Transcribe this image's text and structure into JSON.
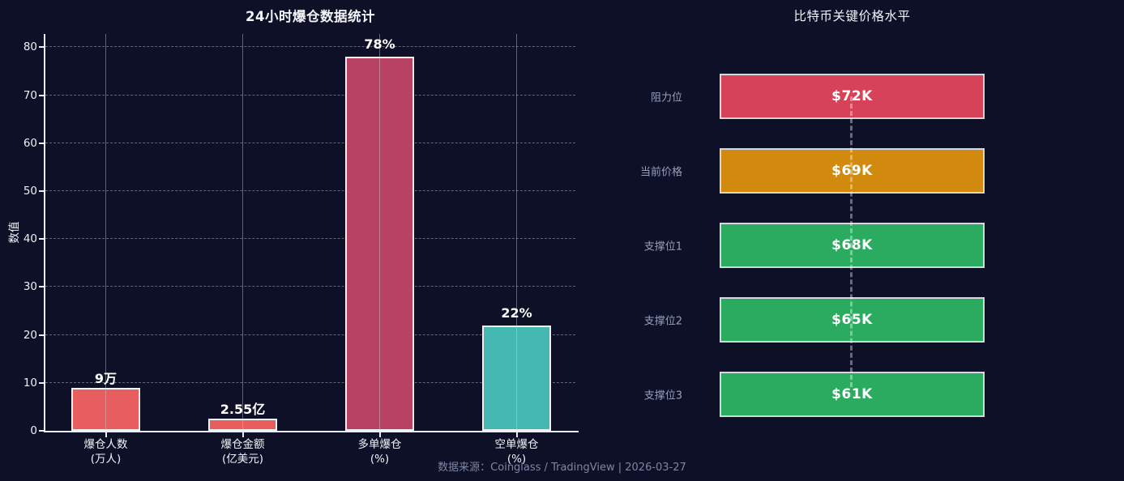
{
  "caption": "数据来源：Coinglass / TradingView | 2026-03-27",
  "colors": {
    "background": "#0d1026",
    "axis": "#e9edf4",
    "salmon": "#e85d5d",
    "crimson": "#b84263",
    "teal": "#45b8b1",
    "resistance_red": "#d64258",
    "current_orange": "#d18a0d",
    "support_green": "#2bab60"
  },
  "chart_data": [
    {
      "type": "bar",
      "title": "24小时爆仓数据统计",
      "xlabel": "",
      "ylabel": "数值",
      "ylim": [
        0,
        80
      ],
      "yticks": [
        0,
        10,
        20,
        30,
        40,
        50,
        60,
        70,
        80
      ],
      "grid": true,
      "categories": [
        "爆仓人数\n(万人)",
        "爆仓金额\n(亿美元)",
        "多单爆仓\n(%)",
        "空单爆仓\n(%)"
      ],
      "values": [
        9,
        2.55,
        78,
        22
      ],
      "bar_labels": [
        "9万",
        "2.55亿",
        "78%",
        "22%"
      ],
      "bar_colors": [
        "#e85d5d",
        "#e85d5d",
        "#b84263",
        "#45b8b1"
      ]
    },
    {
      "type": "bar",
      "subtype": "horizontal-price-levels",
      "title": "比特币关键价格水平",
      "categories": [
        "阻力位",
        "当前价格",
        "支撑位1",
        "支撑位2",
        "支撑位3"
      ],
      "values": [
        "$72K",
        "$69K",
        "$68K",
        "$65K",
        "$61K"
      ],
      "bar_colors": [
        "#d64258",
        "#d18a0d",
        "#2bab60",
        "#2bab60",
        "#2bab60"
      ]
    }
  ]
}
